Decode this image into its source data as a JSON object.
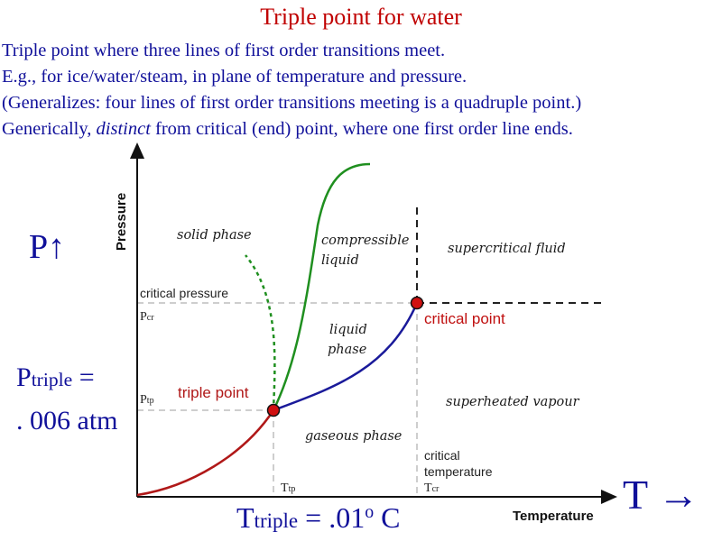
{
  "title": "Triple point for water",
  "lines": {
    "l1": "Triple point where three lines of first order transitions meet.",
    "l2": "E.g., for ice/water/steam, in plane of temperature and pressure.",
    "l3": "(Generalizes: four lines of first order transitions meeting is a quadruple point.)",
    "l4_pre": "Generically, ",
    "l4_em": "distinct",
    "l4_post": " from critical (end) point, where one first order line ends."
  },
  "side_labels": {
    "p_arrow": "P↑",
    "p_triple_main": "P",
    "p_triple_sub": "triple",
    "p_triple_eq": " =",
    "p_triple_value": ". 006 atm",
    "t_triple_main": "T",
    "t_triple_sub": "triple",
    "t_triple_eq": " = .01",
    "t_triple_sup": "o",
    "t_triple_unit": " C",
    "t_arrow": "T →"
  },
  "diagram": {
    "axis_y_label": "Pressure",
    "axis_x_label": "Temperature",
    "regions": {
      "solid": "solid phase",
      "compressible_1": "compressible",
      "compressible_2": "liquid",
      "supercritical": "supercritical fluid",
      "liquid_1": "liquid",
      "liquid_2": "phase",
      "superheated": "superheated vapour",
      "gaseous": "gaseous phase"
    },
    "labels": {
      "critical_pressure": "critical pressure",
      "pcr_main": "P",
      "pcr_sub": "cr",
      "ptp_main": "P",
      "ptp_sub": "tp",
      "triple_point": "triple point",
      "critical_point": "critical point",
      "critical_temp_1": "critical",
      "critical_temp_2": "temperature",
      "ttp_main": "T",
      "ttp_sub": "tp",
      "tcr_main": "T",
      "tcr_sub": "cr"
    },
    "colors": {
      "solid_line": "#1f8f1f",
      "sublimation_line": "#b01818",
      "vaporization_line": "#1a1a9a",
      "point_fill": "#d01010",
      "critical_text": "#c01010"
    }
  }
}
